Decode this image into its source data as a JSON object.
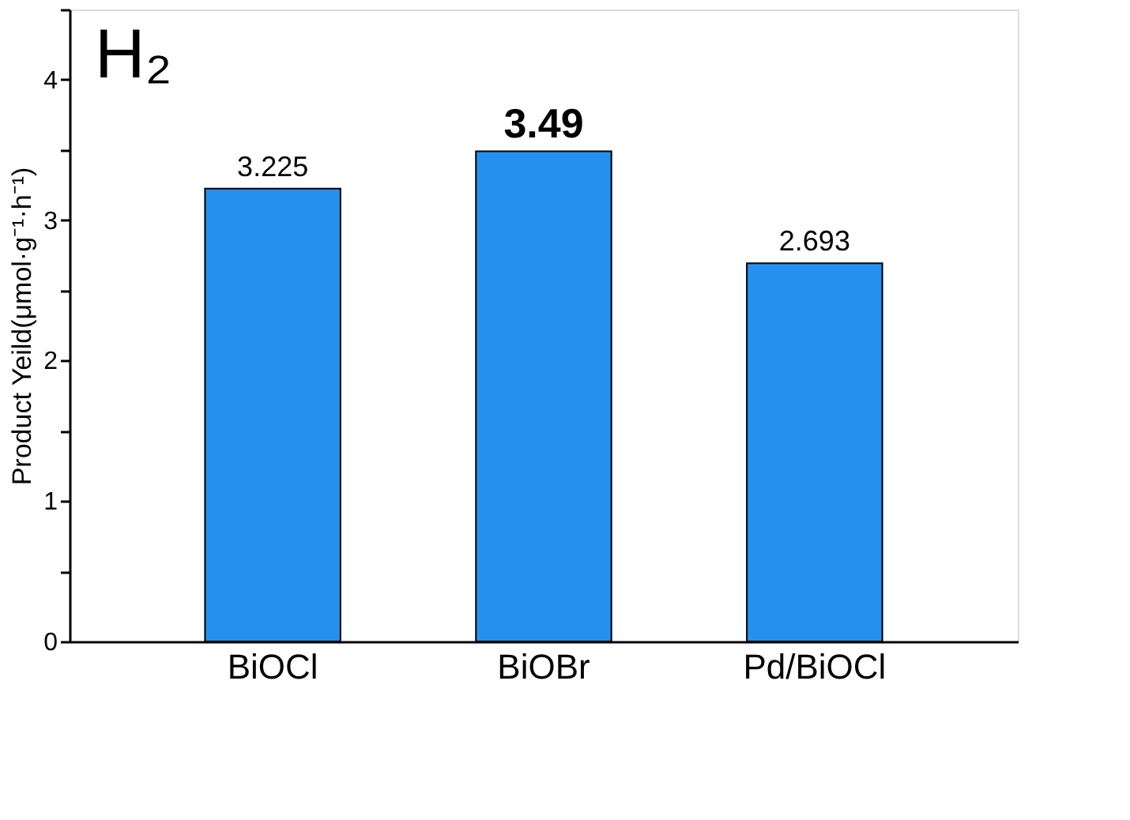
{
  "chart_data": {
    "type": "bar",
    "ylabel": "Product Yeild(μmol·g⁻¹·h⁻¹)",
    "categories": [
      "BiOCl",
      "BiOBr",
      "Pd/BiOCl"
    ],
    "values": [
      3.225,
      3.49,
      2.693
    ],
    "color": "#2591ef",
    "data_labels": true,
    "annotations": [
      "H₂"
    ],
    "ylim": [
      0,
      4.5
    ],
    "yticks": [
      0,
      {
        "value": 0.5,
        "label": null
      },
      1,
      {
        "value": 1.5,
        "label": null
      },
      2,
      {
        "value": 2.5,
        "label": null
      },
      3,
      {
        "value": 3.5,
        "label": null
      },
      4,
      {
        "value": 4.5,
        "label": null
      }
    ],
    "grid": false
  }
}
